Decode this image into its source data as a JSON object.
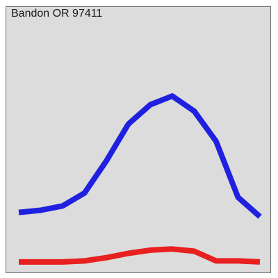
{
  "chart_data": {
    "type": "line",
    "title": "Bandon OR 97411",
    "xlabel": "",
    "ylabel": "",
    "grid": false,
    "legend": "none",
    "x": [
      1,
      2,
      3,
      4,
      5,
      6,
      7,
      8,
      9,
      10,
      11,
      12
    ],
    "ylim": [
      0,
      100
    ],
    "series": [
      {
        "color": "#2020e0",
        "values": [
          24,
          25,
          27,
          33,
          48,
          65,
          74,
          78,
          71,
          57,
          31,
          22
        ]
      },
      {
        "color": "#e82020",
        "values": [
          1,
          1,
          1,
          1.5,
          3,
          5,
          6.5,
          7,
          6,
          1.5,
          1.5,
          1
        ]
      }
    ]
  }
}
